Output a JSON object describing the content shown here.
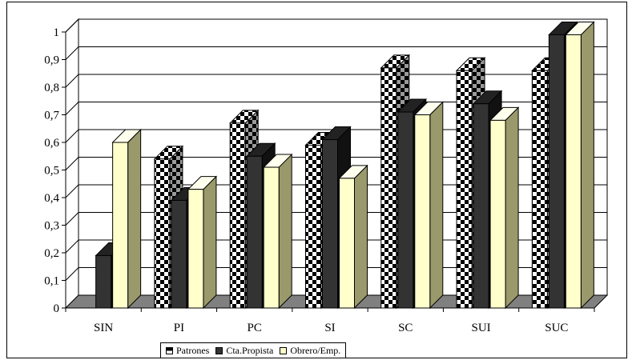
{
  "chart_data": {
    "type": "bar",
    "style": "3d-clustered-column",
    "categories": [
      "SIN",
      "PI",
      "PC",
      "SI",
      "SC",
      "SUI",
      "SUC"
    ],
    "series": [
      {
        "name": "Patrones",
        "values": [
          null,
          0.54,
          0.67,
          0.59,
          0.87,
          0.86,
          0.86
        ],
        "fill": "checkerboard"
      },
      {
        "name": "Cta.Propista",
        "values": [
          0.19,
          0.39,
          0.55,
          0.61,
          0.71,
          0.74,
          0.99
        ],
        "color": "#333333"
      },
      {
        "name": "Obrero/Emp.",
        "values": [
          0.6,
          0.43,
          0.51,
          0.47,
          0.7,
          0.68,
          0.99
        ],
        "color": "#ffffcc"
      }
    ],
    "y_ticks": [
      "0",
      "0,1",
      "0,2",
      "0,3",
      "0,4",
      "0,5",
      "0,6",
      "0,7",
      "0,8",
      "0,9",
      "1"
    ],
    "ylim": [
      0,
      1
    ],
    "grid": true,
    "legend_position": "bottom",
    "title": "",
    "xlabel": "",
    "ylabel": ""
  }
}
